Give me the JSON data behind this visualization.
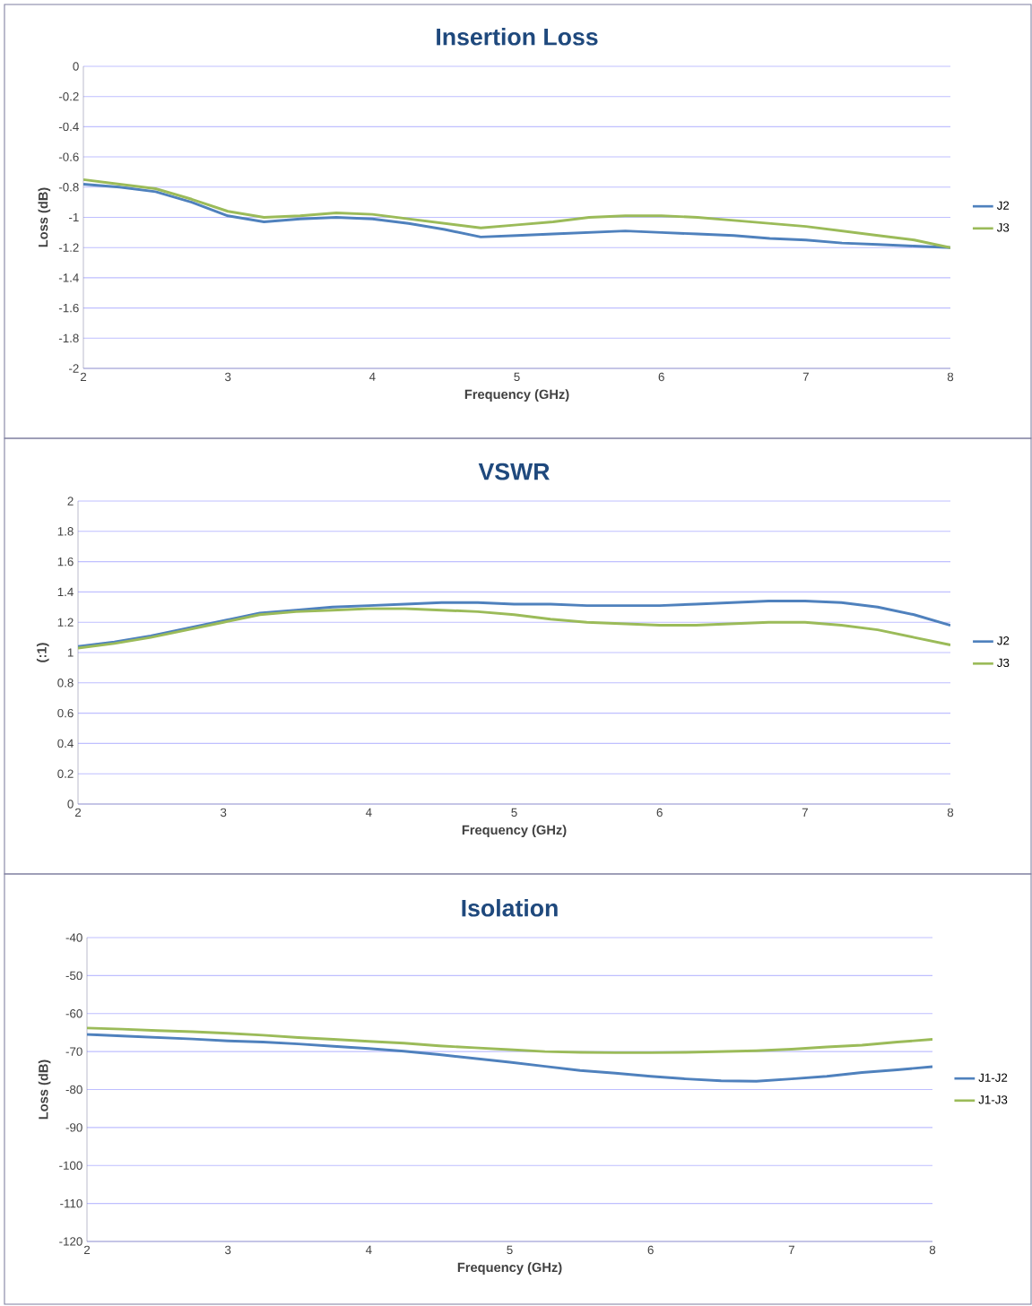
{
  "chart_data": [
    {
      "type": "line",
      "title": "Insertion Loss",
      "xlabel": "Frequency (GHz)",
      "ylabel": "Loss (dB)",
      "x": [
        2,
        2.25,
        2.5,
        2.75,
        3,
        3.25,
        3.5,
        3.75,
        4,
        4.25,
        4.5,
        4.75,
        5,
        5.25,
        5.5,
        5.75,
        6,
        6.25,
        6.5,
        6.75,
        7,
        7.25,
        7.5,
        7.75,
        8
      ],
      "series": [
        {
          "name": "J2",
          "color": "#4f81bd",
          "values": [
            -0.78,
            -0.8,
            -0.83,
            -0.9,
            -0.99,
            -1.03,
            -1.01,
            -1.0,
            -1.01,
            -1.04,
            -1.08,
            -1.13,
            -1.12,
            -1.11,
            -1.1,
            -1.09,
            -1.1,
            -1.11,
            -1.12,
            -1.14,
            -1.15,
            -1.17,
            -1.18,
            -1.19,
            -1.2
          ]
        },
        {
          "name": "J3",
          "color": "#9bbb59",
          "values": [
            -0.75,
            -0.78,
            -0.81,
            -0.88,
            -0.96,
            -1.0,
            -0.99,
            -0.97,
            -0.98,
            -1.01,
            -1.04,
            -1.07,
            -1.05,
            -1.03,
            -1.0,
            -0.99,
            -0.99,
            -1.0,
            -1.02,
            -1.04,
            -1.06,
            -1.09,
            -1.12,
            -1.15,
            -1.2
          ]
        }
      ],
      "xlim": [
        2,
        8
      ],
      "xticks": [
        2,
        3,
        4,
        5,
        6,
        7,
        8
      ],
      "ylim": [
        -2,
        0
      ],
      "yticks": [
        -2,
        -1.8,
        -1.6,
        -1.4,
        -1.2,
        -1,
        -0.8,
        -0.6,
        -0.4,
        -0.2,
        0
      ],
      "grid": "y",
      "legend": "right"
    },
    {
      "type": "line",
      "title": "VSWR",
      "xlabel": "Frequency (GHz)",
      "ylabel": "(:1)",
      "x": [
        2,
        2.25,
        2.5,
        2.75,
        3,
        3.25,
        3.5,
        3.75,
        4,
        4.25,
        4.5,
        4.75,
        5,
        5.25,
        5.5,
        5.75,
        6,
        6.25,
        6.5,
        6.75,
        7,
        7.25,
        7.5,
        7.75,
        8
      ],
      "series": [
        {
          "name": "J2",
          "color": "#4f81bd",
          "values": [
            1.04,
            1.07,
            1.11,
            1.16,
            1.21,
            1.26,
            1.28,
            1.3,
            1.31,
            1.32,
            1.33,
            1.33,
            1.32,
            1.32,
            1.31,
            1.31,
            1.31,
            1.32,
            1.33,
            1.34,
            1.34,
            1.33,
            1.3,
            1.25,
            1.18
          ]
        },
        {
          "name": "J3",
          "color": "#9bbb59",
          "values": [
            1.03,
            1.06,
            1.1,
            1.15,
            1.2,
            1.25,
            1.27,
            1.28,
            1.29,
            1.29,
            1.28,
            1.27,
            1.25,
            1.22,
            1.2,
            1.19,
            1.18,
            1.18,
            1.19,
            1.2,
            1.2,
            1.18,
            1.15,
            1.1,
            1.05
          ]
        }
      ],
      "xlim": [
        2,
        8
      ],
      "xticks": [
        2,
        3,
        4,
        5,
        6,
        7,
        8
      ],
      "ylim": [
        0,
        2
      ],
      "yticks": [
        0,
        0.2,
        0.4,
        0.6,
        0.8,
        1,
        1.2,
        1.4,
        1.6,
        1.8,
        2
      ],
      "grid": "y",
      "legend": "right"
    },
    {
      "type": "line",
      "title": "Isolation",
      "xlabel": "Frequency (GHz)",
      "ylabel": "Loss (dB)",
      "x": [
        2,
        2.25,
        2.5,
        2.75,
        3,
        3.25,
        3.5,
        3.75,
        4,
        4.25,
        4.5,
        4.75,
        5,
        5.25,
        5.5,
        5.75,
        6,
        6.25,
        6.5,
        6.75,
        7,
        7.25,
        7.5,
        7.75,
        8
      ],
      "series": [
        {
          "name": "J1-J2",
          "color": "#4f81bd",
          "values": [
            -65.5,
            -65.9,
            -66.3,
            -66.7,
            -67.2,
            -67.5,
            -68.0,
            -68.6,
            -69.2,
            -69.9,
            -70.8,
            -71.8,
            -72.8,
            -73.9,
            -75.0,
            -75.7,
            -76.5,
            -77.2,
            -77.7,
            -77.8,
            -77.2,
            -76.5,
            -75.5,
            -74.8,
            -74.0
          ]
        },
        {
          "name": "J1-J3",
          "color": "#9bbb59",
          "values": [
            -63.8,
            -64.1,
            -64.5,
            -64.8,
            -65.2,
            -65.7,
            -66.3,
            -66.8,
            -67.3,
            -67.8,
            -68.5,
            -69.0,
            -69.5,
            -70.0,
            -70.2,
            -70.3,
            -70.3,
            -70.2,
            -70.0,
            -69.8,
            -69.4,
            -68.8,
            -68.3,
            -67.5,
            -66.8
          ]
        }
      ],
      "xlim": [
        2,
        8
      ],
      "xticks": [
        2,
        3,
        4,
        5,
        6,
        7,
        8
      ],
      "ylim": [
        -120,
        -40
      ],
      "yticks": [
        -120,
        -110,
        -100,
        -90,
        -80,
        -70,
        -60,
        -50,
        -40
      ],
      "grid": "y",
      "legend": "right"
    }
  ]
}
